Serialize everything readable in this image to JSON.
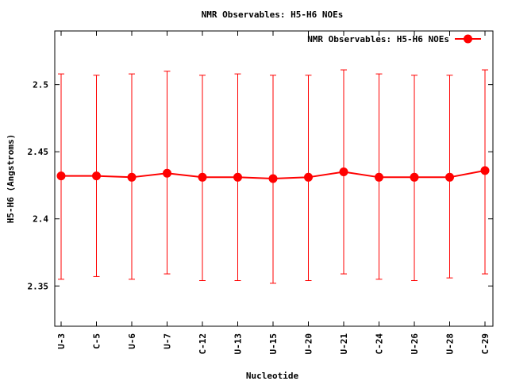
{
  "chart_data": {
    "type": "line",
    "title": "NMR Observables: H5-H6 NOEs",
    "xlabel": "Nucleotide",
    "ylabel": "H5-H6 (Angstroms)",
    "ylim": [
      2.32,
      2.54
    ],
    "yticks": [
      2.35,
      2.4,
      2.45,
      2.5
    ],
    "ytick_labels": [
      "2.35",
      "2.4",
      "2.45",
      "2.5"
    ],
    "categories": [
      "U-3",
      "C-5",
      "U-6",
      "U-7",
      "C-12",
      "U-13",
      "U-15",
      "U-20",
      "U-21",
      "C-24",
      "U-26",
      "U-28",
      "C-29"
    ],
    "series": [
      {
        "name": "NMR Observables: H5-H6 NOEs",
        "color": "#ff0000",
        "values": [
          2.432,
          2.432,
          2.431,
          2.434,
          2.431,
          2.431,
          2.43,
          2.431,
          2.435,
          2.431,
          2.431,
          2.431,
          2.436
        ],
        "err_low": [
          2.355,
          2.357,
          2.355,
          2.359,
          2.354,
          2.354,
          2.352,
          2.354,
          2.359,
          2.355,
          2.354,
          2.356,
          2.359
        ],
        "err_high": [
          2.508,
          2.507,
          2.508,
          2.51,
          2.507,
          2.508,
          2.507,
          2.507,
          2.511,
          2.508,
          2.507,
          2.507,
          2.511
        ]
      }
    ],
    "legend_position": "top-right",
    "grid": false
  }
}
